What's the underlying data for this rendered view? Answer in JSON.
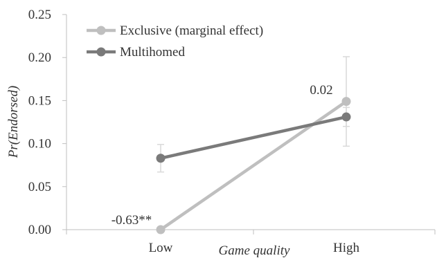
{
  "chart_data": {
    "type": "line",
    "xlabel": "Game quality",
    "ylabel": "Pr(Endorsed)",
    "categories": [
      "Low",
      "High"
    ],
    "ylim": [
      0,
      0.25
    ],
    "yticks": [
      "0.00",
      "0.05",
      "0.10",
      "0.15",
      "0.20",
      "0.25"
    ],
    "grid": false,
    "legend_position": "top-left",
    "series": [
      {
        "name": "Exclusive (marginal effect)",
        "values": [
          0.0,
          0.149
        ],
        "error_low": [
          0.0,
          0.097
        ],
        "error_high": [
          0.0,
          0.201
        ],
        "labels": [
          "-0.63**",
          "0.02"
        ],
        "color": "#bfbfbf"
      },
      {
        "name": "Multihomed",
        "values": [
          0.083,
          0.131
        ],
        "error_low": [
          0.067,
          0.12
        ],
        "error_high": [
          0.099,
          0.142
        ],
        "color": "#7a7a7a"
      }
    ]
  }
}
